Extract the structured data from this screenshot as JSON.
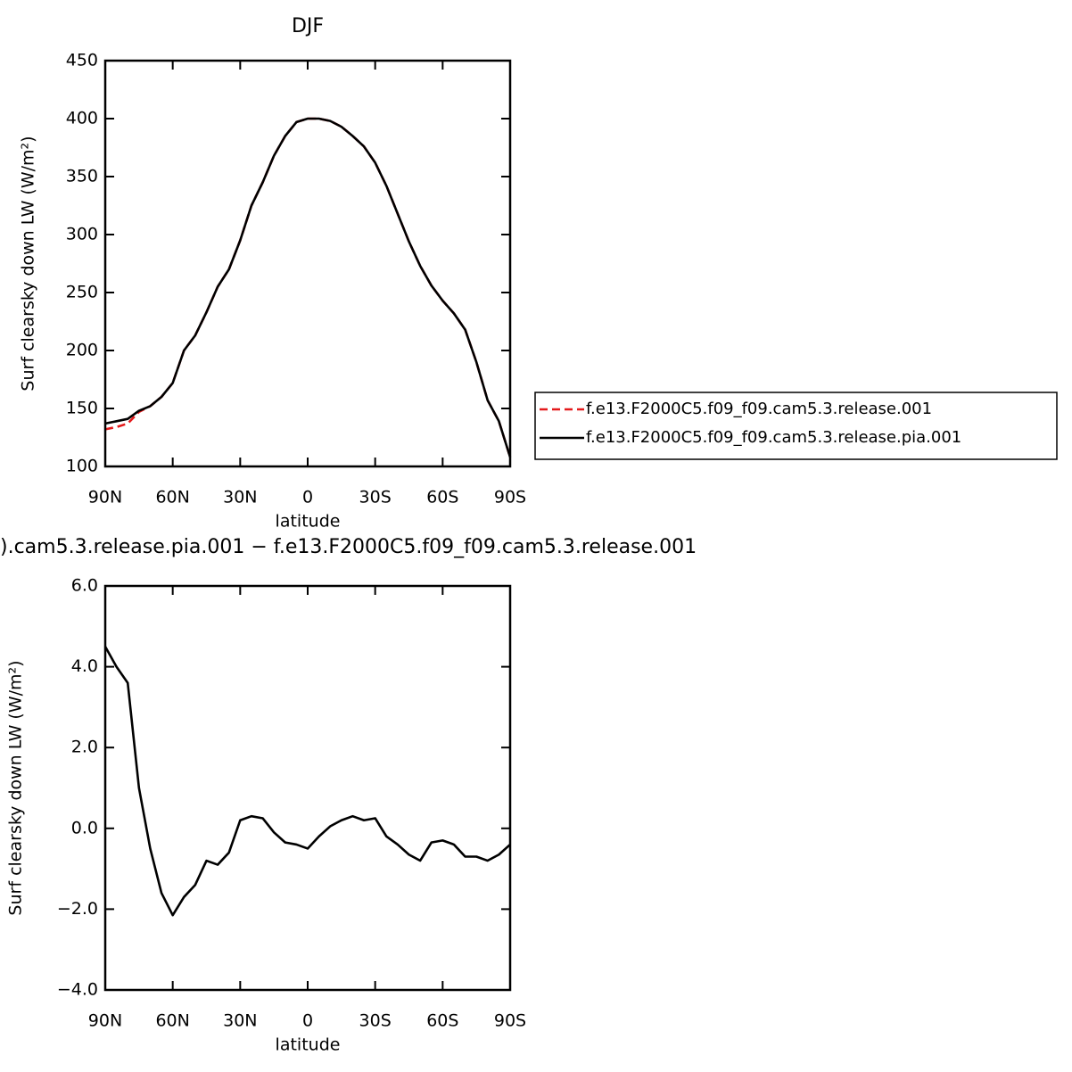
{
  "chart_data": [
    {
      "type": "line",
      "title": "DJF",
      "xlabel": "latitude",
      "ylabel": "Surf clearsky down LW (W/m²)",
      "x": [
        90,
        85,
        80,
        75,
        70,
        65,
        60,
        55,
        50,
        45,
        40,
        35,
        30,
        25,
        20,
        15,
        10,
        5,
        0,
        -5,
        -10,
        -15,
        -20,
        -25,
        -30,
        -35,
        -40,
        -45,
        -50,
        -55,
        -60,
        -65,
        -70,
        -75,
        -80,
        -85,
        -90
      ],
      "xlim": [
        90,
        -90
      ],
      "xticks": [
        {
          "value": 90,
          "label": "90N"
        },
        {
          "value": 60,
          "label": "60N"
        },
        {
          "value": 30,
          "label": "30N"
        },
        0,
        {
          "value": -30,
          "label": "30S"
        },
        {
          "value": -60,
          "label": "60S"
        },
        {
          "value": -90,
          "label": "90S"
        }
      ],
      "ylim": [
        100,
        450
      ],
      "yticks": [
        100,
        150,
        200,
        250,
        300,
        350,
        400,
        450
      ],
      "legend": "outside-right",
      "series": [
        {
          "name": "f.e13.F2000C5.f09_f09.cam5.3.release.001",
          "color": "#e41a1c",
          "dash": "dashed",
          "values": [
            132,
            134,
            137,
            147,
            152,
            160,
            172,
            200,
            213,
            233,
            255,
            270,
            295,
            325,
            345,
            368,
            385,
            397,
            400,
            400,
            398,
            393,
            385,
            376,
            362,
            342,
            318,
            294,
            273,
            256,
            243,
            232,
            218,
            190,
            157,
            139,
            108
          ]
        },
        {
          "name": "f.e13.F2000C5.f09_f09.cam5.3.release.pia.001",
          "color": "#000000",
          "dash": "solid",
          "values": [
            137,
            139,
            141,
            148,
            152,
            160,
            172,
            200,
            213,
            233,
            255,
            270,
            295,
            325,
            345,
            368,
            385,
            397,
            400,
            400,
            398,
            393,
            385,
            376,
            362,
            342,
            318,
            294,
            273,
            256,
            243,
            232,
            218,
            190,
            157,
            139,
            108
          ]
        }
      ]
    },
    {
      "type": "line",
      "title": ").cam5.3.release.pia.001 − f.e13.F2000C5.f09_f09.cam5.3.release.001",
      "xlabel": "latitude",
      "ylabel": "Surf clearsky down LW (W/m²)",
      "x": [
        90,
        85,
        80,
        75,
        70,
        65,
        60,
        55,
        50,
        45,
        40,
        35,
        30,
        25,
        20,
        15,
        10,
        5,
        0,
        -5,
        -10,
        -15,
        -20,
        -25,
        -30,
        -35,
        -40,
        -45,
        -50,
        -55,
        -60,
        -65,
        -70,
        -75,
        -80,
        -85,
        -90
      ],
      "xlim": [
        90,
        -90
      ],
      "xticks": [
        {
          "value": 90,
          "label": "90N"
        },
        {
          "value": 60,
          "label": "60N"
        },
        {
          "value": 30,
          "label": "30N"
        },
        0,
        {
          "value": -30,
          "label": "30S"
        },
        {
          "value": -60,
          "label": "60S"
        },
        {
          "value": -90,
          "label": "90S"
        }
      ],
      "ylim": [
        -4,
        6
      ],
      "yticks": [
        {
          "value": -4,
          "label": "−4.0"
        },
        {
          "value": -2,
          "label": "−2.0"
        },
        {
          "value": 0,
          "label": "0.0"
        },
        {
          "value": 2,
          "label": "2.0"
        },
        {
          "value": 4,
          "label": "4.0"
        },
        {
          "value": 6,
          "label": "6.0"
        }
      ],
      "series": [
        {
          "color": "#000000",
          "dash": "solid",
          "values": [
            4.5,
            4.0,
            3.6,
            1.0,
            -0.5,
            -1.6,
            -2.15,
            -1.7,
            -1.4,
            -0.8,
            -0.9,
            -0.6,
            0.2,
            0.3,
            0.25,
            -0.1,
            -0.35,
            -0.4,
            -0.5,
            -0.2,
            0.05,
            0.2,
            0.3,
            0.2,
            0.25,
            -0.2,
            -0.4,
            -0.65,
            -0.8,
            -0.35,
            -0.3,
            -0.4,
            -0.7,
            -0.7,
            -0.8,
            -0.65,
            -0.4
          ]
        }
      ]
    }
  ]
}
